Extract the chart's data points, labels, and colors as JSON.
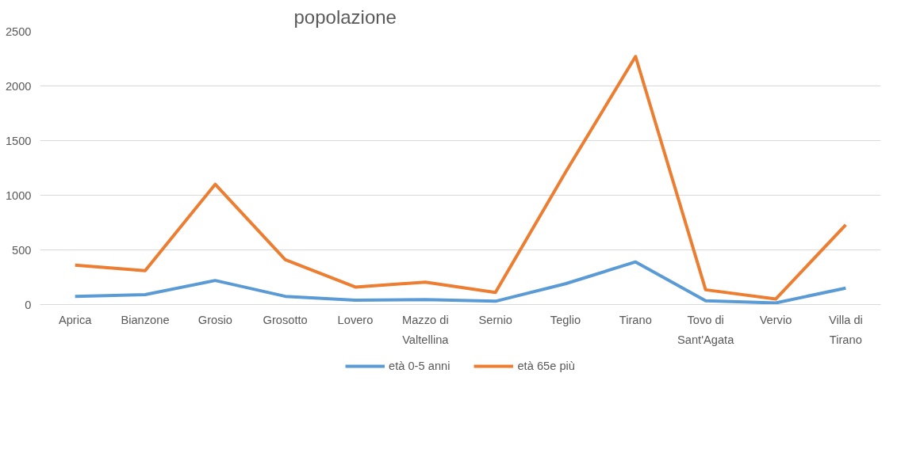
{
  "chart_data": {
    "type": "line",
    "title": "popolazione",
    "categories": [
      "Aprica",
      "Bianzone",
      "Grosio",
      "Grosotto",
      "Lovero",
      "Mazzo di Valtellina",
      "Sernio",
      "Teglio",
      "Tirano",
      "Tovo di Sant'Agata",
      "Vervio",
      "Villa di Tirano"
    ],
    "series": [
      {
        "name": "età 0-5 anni",
        "color": "#5b9bd5",
        "values": [
          75,
          90,
          220,
          75,
          40,
          45,
          30,
          190,
          390,
          35,
          15,
          150
        ]
      },
      {
        "name": "età 65e più",
        "color": "#ed7d31",
        "values": [
          360,
          310,
          1100,
          410,
          160,
          205,
          110,
          1210,
          2270,
          135,
          50,
          730
        ]
      }
    ],
    "ylim": [
      0,
      2500
    ],
    "yticks": [
      0,
      500,
      1000,
      1500,
      2000,
      2500
    ],
    "grid": "y",
    "legend": "bottom",
    "marker": "none",
    "line_style": "solid"
  }
}
